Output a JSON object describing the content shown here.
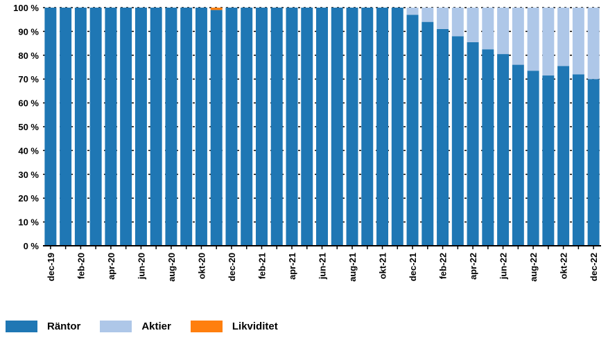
{
  "chart_data": {
    "type": "bar",
    "stacked": true,
    "categories": [
      "dec-19",
      "jan-20",
      "feb-20",
      "mar-20",
      "apr-20",
      "maj-20",
      "jun-20",
      "jul-20",
      "aug-20",
      "sep-20",
      "okt-20",
      "nov-20",
      "dec-20",
      "jan-21",
      "feb-21",
      "mar-21",
      "apr-21",
      "maj-21",
      "jun-21",
      "jul-21",
      "aug-21",
      "sep-21",
      "okt-21",
      "nov-21",
      "dec-21",
      "jan-22",
      "feb-22",
      "mar-22",
      "apr-22",
      "maj-22",
      "jun-22",
      "jul-22",
      "aug-22",
      "sep-22",
      "okt-22",
      "nov-22",
      "dec-22"
    ],
    "tick_labels": [
      "dec-19",
      "feb-20",
      "apr-20",
      "jun-20",
      "aug-20",
      "okt-20",
      "dec-20",
      "feb-21",
      "apr-21",
      "jun-21",
      "aug-21",
      "okt-21",
      "dec-21",
      "feb-22",
      "apr-22",
      "jun-22",
      "aug-22",
      "okt-22",
      "dec-22"
    ],
    "series": [
      {
        "name": "Räntor",
        "color": "#1F77B4",
        "values": [
          100,
          100,
          100,
          100,
          100,
          100,
          100,
          100,
          100,
          100,
          100,
          99,
          100,
          100,
          100,
          100,
          100,
          100,
          100,
          100,
          100,
          100,
          100,
          100,
          97,
          94,
          91,
          88,
          85.5,
          82.5,
          80.5,
          76,
          73.5,
          71.5,
          75.5,
          72,
          70
        ]
      },
      {
        "name": "Aktier",
        "color": "#AEC7E8",
        "values": [
          0,
          0,
          0,
          0,
          0,
          0,
          0,
          0,
          0,
          0,
          0,
          0,
          0,
          0,
          0,
          0,
          0,
          0,
          0,
          0,
          0,
          0,
          0,
          0,
          3,
          6,
          9,
          12,
          14.5,
          17.5,
          19.5,
          24,
          26.5,
          28.5,
          24.5,
          28,
          30
        ]
      },
      {
        "name": "Likviditet",
        "color": "#FF7F0E",
        "values": [
          0,
          0,
          0,
          0,
          0,
          0,
          0,
          0,
          0,
          0,
          0,
          1,
          0,
          0,
          0,
          0,
          0,
          0,
          0,
          0,
          0,
          0,
          0,
          0,
          0,
          0,
          0,
          0,
          0,
          0,
          0,
          0,
          0,
          0,
          0,
          0,
          0
        ]
      }
    ],
    "y_ticks": [
      "0 %",
      "10 %",
      "20 %",
      "30 %",
      "40 %",
      "50 %",
      "60 %",
      "70 %",
      "80 %",
      "90 %",
      "100 %"
    ],
    "ylim": [
      0,
      100
    ],
    "grid": true,
    "legend_position": "bottom-left"
  },
  "legend": {
    "items": [
      {
        "label": "Räntor",
        "color": "#1F77B4"
      },
      {
        "label": "Aktier",
        "color": "#AEC7E8"
      },
      {
        "label": "Likviditet",
        "color": "#FF7F0E"
      }
    ]
  }
}
